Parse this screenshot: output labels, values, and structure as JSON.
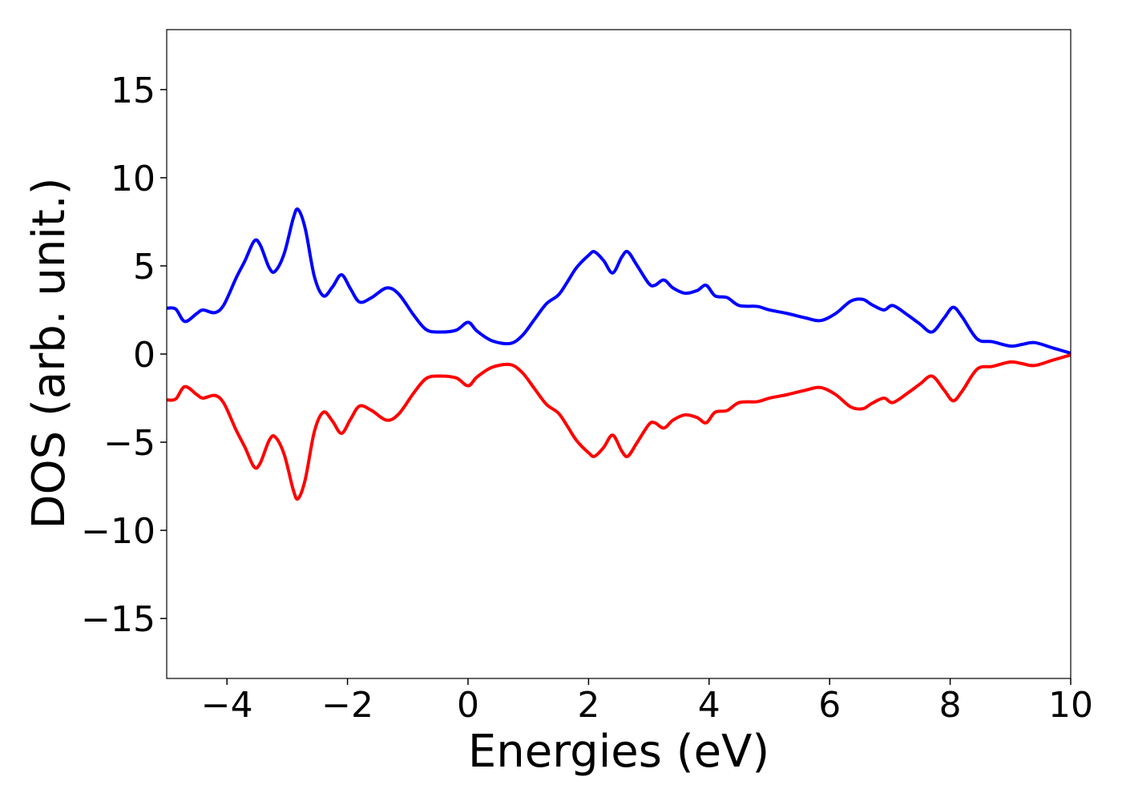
{
  "chart_data": {
    "type": "line",
    "xlabel": "Energies (eV)",
    "ylabel": "DOS (arb. unit.)",
    "x": [
      -5,
      -4.85,
      -4.7,
      -4.5,
      -4.4,
      -4.2,
      -4.05,
      -3.85,
      -3.7,
      -3.55,
      -3.45,
      -3.3,
      -3.2,
      -3.05,
      -2.9,
      -2.82,
      -2.7,
      -2.55,
      -2.4,
      -2.25,
      -2.1,
      -1.95,
      -1.8,
      -1.6,
      -1.35,
      -1.15,
      -0.9,
      -0.7,
      -0.5,
      -0.2,
      0,
      0.15,
      0.4,
      0.7,
      0.9,
      1.1,
      1.3,
      1.5,
      1.65,
      1.8,
      2.0,
      2.1,
      2.25,
      2.4,
      2.55,
      2.65,
      2.8,
      3.0,
      3.1,
      3.25,
      3.4,
      3.6,
      3.8,
      3.95,
      4.1,
      4.3,
      4.5,
      4.8,
      5.0,
      5.3,
      5.6,
      5.85,
      6.1,
      6.35,
      6.55,
      6.7,
      6.9,
      7.05,
      7.3,
      7.5,
      7.7,
      7.9,
      8.05,
      8.2,
      8.45,
      8.7,
      9.0,
      9.2,
      9.4,
      9.7,
      10
    ],
    "series": [
      {
        "color": "#0000ff",
        "values": [
          2.6,
          2.55,
          1.85,
          2.3,
          2.5,
          2.35,
          2.8,
          4.3,
          5.3,
          6.4,
          6.2,
          4.9,
          4.7,
          5.7,
          7.7,
          8.2,
          7.1,
          4.4,
          3.3,
          3.8,
          4.5,
          3.7,
          2.95,
          3.2,
          3.75,
          3.4,
          2.2,
          1.4,
          1.25,
          1.35,
          1.8,
          1.3,
          0.75,
          0.6,
          1.05,
          1.95,
          2.85,
          3.35,
          4.1,
          4.9,
          5.6,
          5.8,
          5.3,
          4.6,
          5.5,
          5.8,
          5.05,
          4.0,
          3.9,
          4.2,
          3.75,
          3.45,
          3.6,
          3.9,
          3.3,
          3.2,
          2.75,
          2.7,
          2.5,
          2.3,
          2.05,
          1.9,
          2.3,
          3.0,
          3.1,
          2.8,
          2.5,
          2.75,
          2.2,
          1.7,
          1.25,
          2.05,
          2.65,
          2.1,
          0.85,
          0.7,
          0.45,
          0.55,
          0.65,
          0.35,
          0.05
        ]
      },
      {
        "color": "#ff0000",
        "values": [
          -2.6,
          -2.55,
          -1.85,
          -2.3,
          -2.5,
          -2.35,
          -2.8,
          -4.3,
          -5.3,
          -6.4,
          -6.2,
          -4.9,
          -4.7,
          -5.7,
          -7.7,
          -8.2,
          -7.1,
          -4.4,
          -3.3,
          -3.8,
          -4.5,
          -3.7,
          -2.95,
          -3.2,
          -3.75,
          -3.4,
          -2.2,
          -1.4,
          -1.25,
          -1.35,
          -1.8,
          -1.3,
          -0.75,
          -0.6,
          -1.05,
          -1.95,
          -2.85,
          -3.35,
          -4.1,
          -4.9,
          -5.6,
          -5.8,
          -5.3,
          -4.6,
          -5.5,
          -5.8,
          -5.05,
          -4.0,
          -3.9,
          -4.2,
          -3.75,
          -3.45,
          -3.6,
          -3.9,
          -3.3,
          -3.2,
          -2.75,
          -2.7,
          -2.5,
          -2.3,
          -2.05,
          -1.9,
          -2.3,
          -3.0,
          -3.1,
          -2.8,
          -2.5,
          -2.75,
          -2.2,
          -1.7,
          -1.25,
          -2.05,
          -2.65,
          -2.1,
          -0.85,
          -0.7,
          -0.45,
          -0.55,
          -0.65,
          -0.35,
          -0.05
        ]
      }
    ],
    "xlim": [
      -5,
      10
    ],
    "xticks": [
      {
        "value": -4,
        "label": "−4"
      },
      {
        "value": -2,
        "label": "−2"
      },
      0,
      2,
      4,
      6,
      8,
      10
    ],
    "ylim": [
      -18.4,
      18.4
    ],
    "yticks": [
      {
        "value": -15,
        "label": "−15"
      },
      {
        "value": -10,
        "label": "−10"
      },
      {
        "value": -5,
        "label": "−5"
      },
      0,
      5,
      10,
      15
    ],
    "grid": false
  }
}
